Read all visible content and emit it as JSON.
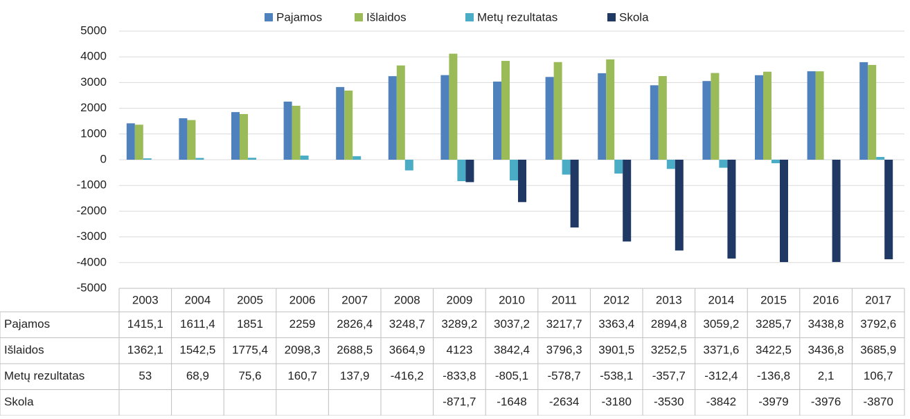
{
  "chart_data": {
    "type": "bar",
    "categories": [
      "2003",
      "2004",
      "2005",
      "2006",
      "2007",
      "2008",
      "2009",
      "2010",
      "2011",
      "2012",
      "2013",
      "2014",
      "2015",
      "2016",
      "2017"
    ],
    "series": [
      {
        "name": "Pajamos",
        "color": "#4f81bd",
        "values": [
          1415.1,
          1611.4,
          1851,
          2259,
          2826.4,
          3248.7,
          3289.2,
          3037.2,
          3217.7,
          3363.4,
          2894.8,
          3059.2,
          3285.7,
          3438.8,
          3792.6
        ],
        "value_labels": [
          "1415,1",
          "1611,4",
          "1851",
          "2259",
          "2826,4",
          "3248,7",
          "3289,2",
          "3037,2",
          "3217,7",
          "3363,4",
          "2894,8",
          "3059,2",
          "3285,7",
          "3438,8",
          "3792,6"
        ]
      },
      {
        "name": "Išlaidos",
        "color": "#9bbb59",
        "values": [
          1362.1,
          1542.5,
          1775.4,
          2098.3,
          2688.5,
          3664.9,
          4123,
          3842.4,
          3796.3,
          3901.5,
          3252.5,
          3371.6,
          3422.5,
          3436.8,
          3685.9
        ],
        "value_labels": [
          "1362,1",
          "1542,5",
          "1775,4",
          "2098,3",
          "2688,5",
          "3664,9",
          "4123",
          "3842,4",
          "3796,3",
          "3901,5",
          "3252,5",
          "3371,6",
          "3422,5",
          "3436,8",
          "3685,9"
        ]
      },
      {
        "name": "Metų rezultatas",
        "color": "#4bacc6",
        "values": [
          53,
          68.9,
          75.6,
          160.7,
          137.9,
          -416.2,
          -833.8,
          -805.1,
          -578.7,
          -538.1,
          -357.7,
          -312.4,
          -136.8,
          2.1,
          106.7
        ],
        "value_labels": [
          "53",
          "68,9",
          "75,6",
          "160,7",
          "137,9",
          "-416,2",
          "-833,8",
          "-805,1",
          "-578,7",
          "-538,1",
          "-357,7",
          "-312,4",
          "-136,8",
          "2,1",
          "106,7"
        ]
      },
      {
        "name": "Skola",
        "color": "#1f3864",
        "values": [
          null,
          null,
          null,
          null,
          null,
          null,
          -871.7,
          -1648,
          -2634,
          -3180,
          -3530,
          -3842,
          -3979,
          -3976,
          -3870
        ],
        "value_labels": [
          null,
          null,
          null,
          null,
          null,
          null,
          "-871,7",
          "-1648",
          "-2634",
          "-3180",
          "-3530",
          "-3842",
          "-3979",
          "-3976",
          "-3870"
        ]
      }
    ],
    "ylim": [
      -5000,
      5000
    ],
    "yticks": [
      -5000,
      -4000,
      -3000,
      -2000,
      -1000,
      0,
      1000,
      2000,
      3000,
      4000,
      5000
    ],
    "grid": true,
    "legend": "top"
  }
}
